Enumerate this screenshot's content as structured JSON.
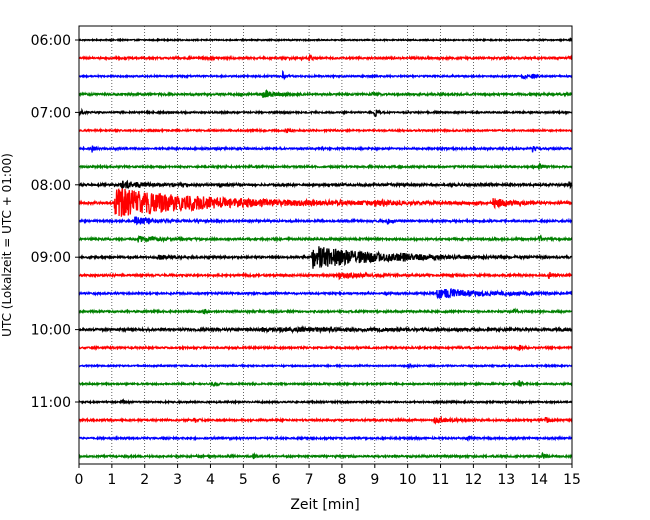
{
  "chart_data": {
    "type": "line",
    "subtype": "helicorder",
    "xlabel": "Zeit  [min]",
    "ylabel": "UTC (Lokalzeit = UTC + 01:00)",
    "xlim": [
      0,
      15
    ],
    "x_ticks": [
      "0",
      "1",
      "2",
      "3",
      "4",
      "5",
      "6",
      "7",
      "8",
      "9",
      "10",
      "11",
      "12",
      "13",
      "14",
      "15"
    ],
    "grid": "vertical dotted at each minute",
    "row_minutes": 15,
    "y_hour_labels": [
      "06:00",
      "07:00",
      "08:00",
      "09:00",
      "10:00",
      "11:00"
    ],
    "color_cycle": [
      "#000000",
      "#ff0000",
      "#0000ff",
      "#008000"
    ],
    "rows": [
      {
        "start": "06:00",
        "color": "#000000",
        "noise": 0.06,
        "events": [
          {
            "t": 14.95,
            "amp": 0.25,
            "dur": 0.1
          }
        ]
      },
      {
        "start": "06:15",
        "color": "#ff0000",
        "noise": 0.1,
        "events": [
          {
            "t": 7.0,
            "amp": 0.45,
            "dur": 0.08
          },
          {
            "t": 14.9,
            "amp": 0.2,
            "dur": 0.1
          }
        ]
      },
      {
        "start": "06:30",
        "color": "#0000ff",
        "noise": 0.08,
        "events": [
          {
            "t": 6.2,
            "amp": 0.45,
            "dur": 0.08
          },
          {
            "t": 13.5,
            "amp": 0.3,
            "dur": 0.1
          },
          {
            "t": 13.8,
            "amp": 0.35,
            "dur": 0.08
          }
        ]
      },
      {
        "start": "06:45",
        "color": "#008000",
        "noise": 0.1,
        "events": [
          {
            "t": 5.6,
            "amp": 0.45,
            "dur": 0.35
          },
          {
            "t": 8.9,
            "amp": 0.2,
            "dur": 0.1
          }
        ]
      },
      {
        "start": "07:00",
        "color": "#000000",
        "noise": 0.08,
        "events": [
          {
            "t": 0.05,
            "amp": 0.3,
            "dur": 0.08
          },
          {
            "t": 9.0,
            "amp": 0.5,
            "dur": 0.08
          }
        ]
      },
      {
        "start": "07:15",
        "color": "#ff0000",
        "noise": 0.08,
        "events": [
          {
            "t": 6.3,
            "amp": 0.4,
            "dur": 0.08
          }
        ]
      },
      {
        "start": "07:30",
        "color": "#0000ff",
        "noise": 0.09,
        "events": [
          {
            "t": 0.4,
            "amp": 0.4,
            "dur": 0.08
          },
          {
            "t": 13.8,
            "amp": 0.45,
            "dur": 0.08
          }
        ]
      },
      {
        "start": "07:45",
        "color": "#008000",
        "noise": 0.09,
        "events": [
          {
            "t": 14.0,
            "amp": 0.35,
            "dur": 0.08
          }
        ]
      },
      {
        "start": "08:00",
        "color": "#000000",
        "noise": 0.12,
        "events": [
          {
            "t": 1.3,
            "amp": 0.4,
            "dur": 0.6
          },
          {
            "t": 14.9,
            "amp": 0.3,
            "dur": 0.15
          }
        ]
      },
      {
        "start": "08:15",
        "color": "#ff0000",
        "noise": 0.12,
        "events": [
          {
            "t": 1.1,
            "amp": 1.6,
            "dur": 2.8
          },
          {
            "t": 9.0,
            "amp": 0.3,
            "dur": 0.4
          },
          {
            "t": 12.6,
            "amp": 0.45,
            "dur": 0.6
          }
        ]
      },
      {
        "start": "08:30",
        "color": "#0000ff",
        "noise": 0.1,
        "events": [
          {
            "t": 1.7,
            "amp": 0.45,
            "dur": 0.5
          },
          {
            "t": 9.4,
            "amp": 0.45,
            "dur": 0.08
          }
        ]
      },
      {
        "start": "08:45",
        "color": "#008000",
        "noise": 0.1,
        "events": [
          {
            "t": 1.8,
            "amp": 0.3,
            "dur": 0.6
          },
          {
            "t": 14.0,
            "amp": 0.35,
            "dur": 0.08
          }
        ]
      },
      {
        "start": "09:00",
        "color": "#000000",
        "noise": 0.1,
        "events": [
          {
            "t": 2.4,
            "amp": 0.25,
            "dur": 0.3
          },
          {
            "t": 7.1,
            "amp": 1.3,
            "dur": 1.8
          },
          {
            "t": 9.8,
            "amp": 0.2,
            "dur": 0.3
          }
        ]
      },
      {
        "start": "09:15",
        "color": "#ff0000",
        "noise": 0.1,
        "events": [
          {
            "t": 7.9,
            "amp": 0.3,
            "dur": 0.8
          },
          {
            "t": 14.3,
            "amp": 0.4,
            "dur": 0.08
          }
        ]
      },
      {
        "start": "09:30",
        "color": "#0000ff",
        "noise": 0.09,
        "events": [
          {
            "t": 10.9,
            "amp": 0.55,
            "dur": 1.4
          }
        ]
      },
      {
        "start": "09:45",
        "color": "#008000",
        "noise": 0.09,
        "events": [
          {
            "t": 3.8,
            "amp": 0.35,
            "dur": 0.08
          },
          {
            "t": 13.2,
            "amp": 0.35,
            "dur": 0.08
          }
        ]
      },
      {
        "start": "10:00",
        "color": "#000000",
        "noise": 0.12,
        "events": [
          {
            "t": 5.5,
            "amp": 0.15,
            "dur": 4.5
          }
        ]
      },
      {
        "start": "10:15",
        "color": "#ff0000",
        "noise": 0.09,
        "events": [
          {
            "t": 13.4,
            "amp": 0.4,
            "dur": 0.08
          }
        ]
      },
      {
        "start": "10:30",
        "color": "#0000ff",
        "noise": 0.07,
        "events": [
          {
            "t": 10.0,
            "amp": 0.2,
            "dur": 0.1
          }
        ]
      },
      {
        "start": "10:45",
        "color": "#008000",
        "noise": 0.08,
        "events": [
          {
            "t": 4.1,
            "amp": 0.3,
            "dur": 0.08
          },
          {
            "t": 13.4,
            "amp": 0.4,
            "dur": 0.08
          }
        ]
      },
      {
        "start": "11:00",
        "color": "#000000",
        "noise": 0.08,
        "events": [
          {
            "t": 1.3,
            "amp": 0.2,
            "dur": 0.1
          }
        ]
      },
      {
        "start": "11:15",
        "color": "#ff0000",
        "noise": 0.09,
        "events": [
          {
            "t": 3.5,
            "amp": 0.3,
            "dur": 0.08
          },
          {
            "t": 10.8,
            "amp": 0.3,
            "dur": 0.4
          },
          {
            "t": 14.2,
            "amp": 0.45,
            "dur": 0.08
          }
        ]
      },
      {
        "start": "11:30",
        "color": "#0000ff",
        "noise": 0.09,
        "events": [
          {
            "t": 11.8,
            "amp": 0.25,
            "dur": 0.1
          }
        ]
      },
      {
        "start": "11:45",
        "color": "#008000",
        "noise": 0.09,
        "events": [
          {
            "t": 5.3,
            "amp": 0.3,
            "dur": 0.08
          },
          {
            "t": 14.1,
            "amp": 0.4,
            "dur": 0.08
          }
        ]
      }
    ]
  }
}
